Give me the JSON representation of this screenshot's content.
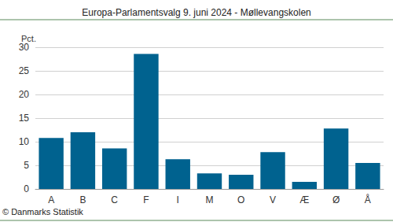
{
  "chart_data": {
    "type": "bar",
    "title": "Europa-Parlamentsvalg 9. juni 2024 - Møllevangskolen",
    "y_label": "Pct.",
    "source": "© Danmarks Statistik",
    "categories": [
      "A",
      "B",
      "C",
      "F",
      "I",
      "M",
      "O",
      "V",
      "Æ",
      "Ø",
      "Å"
    ],
    "values": [
      10.8,
      12.0,
      8.6,
      28.6,
      6.3,
      3.3,
      3.0,
      7.8,
      1.5,
      12.8,
      5.5
    ],
    "color": "#00628f",
    "ylim": [
      0,
      30
    ],
    "yticks": [
      0,
      5,
      10,
      15,
      20,
      25,
      30
    ],
    "grid": true
  }
}
